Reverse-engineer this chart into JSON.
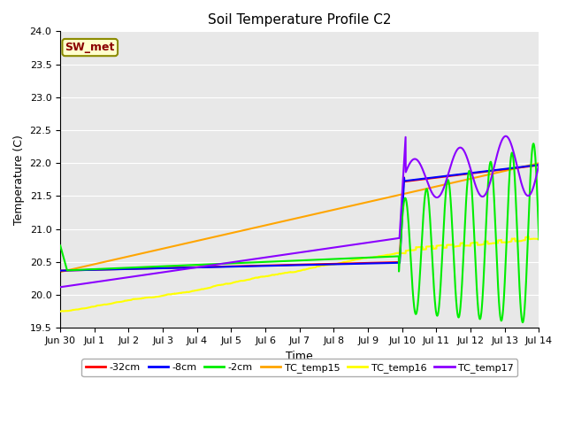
{
  "title": "Soil Temperature Profile C2",
  "xlabel": "Time",
  "ylabel": "Temperature (C)",
  "annotation": "SW_met",
  "annotation_color": "#8B0000",
  "annotation_bg": "#FFFFCC",
  "ylim": [
    19.5,
    24.0
  ],
  "yticks": [
    19.5,
    20.0,
    20.5,
    21.0,
    21.5,
    22.0,
    22.5,
    23.0,
    23.5,
    24.0
  ],
  "series": {
    "neg32cm": {
      "color": "#FF0000",
      "label": "-32cm"
    },
    "neg8cm": {
      "color": "#0000FF",
      "label": "-8cm"
    },
    "neg2cm": {
      "color": "#00EE00",
      "label": "-2cm"
    },
    "TC_temp15": {
      "color": "#FFA500",
      "label": "TC_temp15"
    },
    "TC_temp16": {
      "color": "#FFFF00",
      "label": "TC_temp16"
    },
    "TC_temp17": {
      "color": "#8B00FF",
      "label": "TC_temp17"
    }
  },
  "xtick_labels": [
    "Jun 30",
    "Jul 1",
    "Jul 2",
    "Jul 3",
    "Jul 4",
    "Jul 5",
    "Jul 6",
    "Jul 7",
    "Jul 8",
    "Jul 9",
    "Jul 10",
    "Jul 11",
    "Jul 12",
    "Jul 13",
    "Jul 14"
  ],
  "xtick_positions": [
    0,
    1,
    2,
    3,
    4,
    5,
    6,
    7,
    8,
    9,
    10,
    11,
    12,
    13,
    14
  ]
}
